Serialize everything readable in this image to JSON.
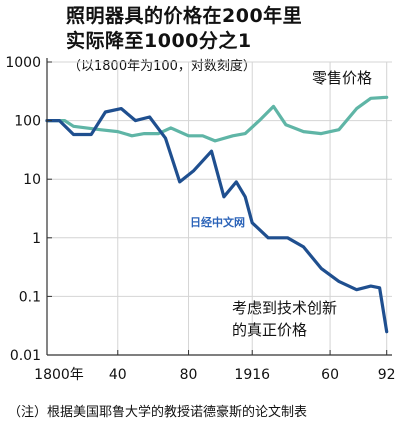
{
  "title_line1": "照明器具的价格在200年里",
  "title_line2": "实际降至1000分之1",
  "subtitle": "（以1800年为100，对数刻度）",
  "footnote": "（注）根据美国耶鲁大学的教授诺德豪斯的论文制表",
  "watermark": "日经中文网",
  "colors": {
    "retail": "#5fb5a6",
    "true_price": "#1f4f8f",
    "axis": "#333333",
    "grid": "#d4d4d4"
  },
  "chart_data": {
    "type": "line",
    "x_scale": "linear",
    "y_scale": "log",
    "xlim": [
      1800,
      1995
    ],
    "ylim": [
      0.01,
      1000
    ],
    "x_ticks": [
      {
        "value": 1800,
        "label": "1800年"
      },
      {
        "value": 1840,
        "label": "40"
      },
      {
        "value": 1880,
        "label": "80"
      },
      {
        "value": 1916,
        "label": "1916"
      },
      {
        "value": 1960,
        "label": "60"
      },
      {
        "value": 1992,
        "label": "92"
      }
    ],
    "y_ticks": [
      {
        "value": 1000,
        "label": "1000"
      },
      {
        "value": 100,
        "label": "100"
      },
      {
        "value": 10,
        "label": "10"
      },
      {
        "value": 1,
        "label": "1"
      },
      {
        "value": 0.1,
        "label": "0.1"
      },
      {
        "value": 0.01,
        "label": "0.01"
      }
    ],
    "series": [
      {
        "key": "retail",
        "name": "零售价格",
        "x": [
          1800,
          1810,
          1815,
          1830,
          1840,
          1848,
          1855,
          1863,
          1870,
          1880,
          1888,
          1895,
          1905,
          1912,
          1920,
          1928,
          1935,
          1945,
          1955,
          1965,
          1975,
          1983,
          1992
        ],
        "y": [
          100,
          100,
          80,
          70,
          65,
          55,
          60,
          60,
          75,
          55,
          55,
          45,
          55,
          60,
          100,
          175,
          85,
          65,
          60,
          70,
          160,
          240,
          250
        ]
      },
      {
        "key": "true_price",
        "name": "考虑到技术创新的真正价格",
        "x": [
          1800,
          1807,
          1815,
          1825,
          1833,
          1842,
          1850,
          1858,
          1867,
          1875,
          1883,
          1893,
          1900,
          1907,
          1912,
          1916,
          1925,
          1936,
          1945,
          1955,
          1965,
          1975,
          1983,
          1988,
          1992
        ],
        "y": [
          100,
          100,
          58,
          58,
          140,
          160,
          100,
          115,
          50,
          9,
          14,
          30,
          5,
          9,
          5,
          1.8,
          1,
          1,
          0.7,
          0.3,
          0.18,
          0.13,
          0.15,
          0.14,
          0.025
        ]
      }
    ],
    "annotations": [
      {
        "series": "retail",
        "text": "零售价格"
      },
      {
        "series": "true_price",
        "lines": [
          "考虑到技术创新",
          "的真正价格"
        ]
      }
    ],
    "grid": true
  }
}
